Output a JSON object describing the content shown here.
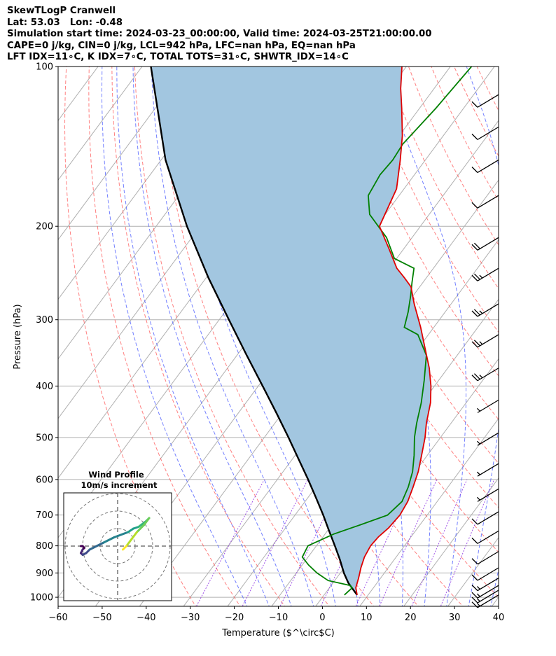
{
  "header": {
    "title": "SkewTLogP Cranwell",
    "latlon": "Lat: 53.03   Lon: -0.48",
    "times": "Simulation start time: 2024-03-23_00:00:00, Valid time: 2024-03-25T21:00:00.00",
    "params1": "CAPE=0 j/kg, CIN=0 j/kg, LCL=942 hPa, LFC=nan hPa, EQ=nan hPa",
    "params2": "LFT IDX=11∘C, K IDX=7∘C, TOTAL TOTS=31∘C, SHWTR_IDX=14∘C"
  },
  "colors": {
    "temperature": "#e00000",
    "dewpoint": "#008000",
    "parcel": "#000000",
    "shade": "#a2c6e0",
    "dry_adiabat": "#ff5555",
    "moist_adiabat": "#4455ff",
    "mixing_ratio": "#8a2be2",
    "isotherm": "#b0b0b0"
  },
  "chart_data": {
    "type": "line",
    "subtype": "skew-T log-P",
    "xlabel": "Temperature ($^\\circ$C)",
    "ylabel": "Pressure (hPa)",
    "xlim": [
      -60,
      40
    ],
    "ylim": [
      1040,
      100
    ],
    "y_scale": "log",
    "grid": true,
    "xticks": [
      -60,
      -50,
      -40,
      -30,
      -20,
      -10,
      0,
      10,
      20,
      30,
      40
    ],
    "xtick_labels": [
      "−60",
      "−50",
      "−40",
      "−30",
      "−20",
      "−10",
      "0",
      "10",
      "20",
      "30",
      "40"
    ],
    "yticks": [
      1000,
      900,
      800,
      700,
      600,
      500,
      400,
      300,
      200,
      100
    ],
    "ytick_labels": [
      "1000",
      "900",
      "800",
      "700",
      "600",
      "500",
      "400",
      "300",
      "200",
      "100"
    ],
    "series": [
      {
        "key": "temperature",
        "points": [
          [
            990,
            7.5
          ],
          [
            960,
            6.0
          ],
          [
            920,
            5.0
          ],
          [
            880,
            3.8
          ],
          [
            840,
            2.8
          ],
          [
            800,
            2.3
          ],
          [
            770,
            2.6
          ],
          [
            740,
            3.4
          ],
          [
            700,
            3.8
          ],
          [
            660,
            3.3
          ],
          [
            620,
            2.1
          ],
          [
            580,
            0.7
          ],
          [
            540,
            -1.3
          ],
          [
            500,
            -3.5
          ],
          [
            470,
            -5.6
          ],
          [
            430,
            -8.1
          ],
          [
            400,
            -10.8
          ],
          [
            370,
            -14.2
          ],
          [
            340,
            -18.4
          ],
          [
            310,
            -23.0
          ],
          [
            280,
            -28.4
          ],
          [
            260,
            -32.0
          ],
          [
            250,
            -35.0
          ],
          [
            240,
            -38.3
          ],
          [
            220,
            -43.5
          ],
          [
            200,
            -49.3
          ],
          [
            170,
            -51.7
          ],
          [
            150,
            -55.7
          ],
          [
            135,
            -59.3
          ],
          [
            120,
            -64.0
          ],
          [
            110,
            -67.6
          ],
          [
            100,
            -71.0
          ]
        ]
      },
      {
        "key": "dewpoint",
        "points": [
          [
            990,
            4.6
          ],
          [
            960,
            5.2
          ],
          [
            950,
            4.3
          ],
          [
            930,
            -1.5
          ],
          [
            900,
            -5.3
          ],
          [
            870,
            -8.5
          ],
          [
            840,
            -11.3
          ],
          [
            800,
            -11.9
          ],
          [
            760,
            -8.0
          ],
          [
            730,
            -3.5
          ],
          [
            700,
            1.0
          ],
          [
            660,
            2.0
          ],
          [
            620,
            1.0
          ],
          [
            580,
            -0.6
          ],
          [
            540,
            -3.0
          ],
          [
            500,
            -5.9
          ],
          [
            470,
            -7.8
          ],
          [
            430,
            -10.2
          ],
          [
            390,
            -13.3
          ],
          [
            350,
            -17.0
          ],
          [
            320,
            -22.4
          ],
          [
            310,
            -26.7
          ],
          [
            290,
            -28.4
          ],
          [
            270,
            -30.6
          ],
          [
            255,
            -32.5
          ],
          [
            240,
            -34.4
          ],
          [
            230,
            -40.5
          ],
          [
            210,
            -45.8
          ],
          [
            190,
            -53.5
          ],
          [
            175,
            -57.0
          ],
          [
            160,
            -57.8
          ],
          [
            150,
            -57.4
          ],
          [
            140,
            -57.8
          ],
          [
            120,
            -56.3
          ],
          [
            100,
            -55.2
          ]
        ]
      },
      {
        "key": "parcel",
        "points": [
          [
            990,
            7.5
          ],
          [
            960,
            5.1
          ],
          [
            940,
            3.5
          ],
          [
            900,
            0.8
          ],
          [
            850,
            -2.3
          ],
          [
            800,
            -5.8
          ],
          [
            750,
            -9.6
          ],
          [
            700,
            -13.6
          ],
          [
            650,
            -18.1
          ],
          [
            600,
            -23.0
          ],
          [
            550,
            -28.5
          ],
          [
            500,
            -34.5
          ],
          [
            450,
            -41.3
          ],
          [
            400,
            -49.0
          ],
          [
            350,
            -57.8
          ],
          [
            300,
            -67.8
          ],
          [
            250,
            -79.5
          ],
          [
            200,
            -93.0
          ],
          [
            150,
            -109.0
          ],
          [
            100,
            -128.0
          ]
        ]
      }
    ],
    "wind_barbs": [
      {
        "p": 990,
        "kt": 15
      },
      {
        "p": 970,
        "kt": 15
      },
      {
        "p": 950,
        "kt": 15
      },
      {
        "p": 920,
        "kt": 15
      },
      {
        "p": 880,
        "kt": 10
      },
      {
        "p": 820,
        "kt": 10
      },
      {
        "p": 750,
        "kt": 10
      },
      {
        "p": 690,
        "kt": 10
      },
      {
        "p": 625,
        "kt": 5
      },
      {
        "p": 560,
        "kt": 5
      },
      {
        "p": 490,
        "kt": 5
      },
      {
        "p": 425,
        "kt": 5
      },
      {
        "p": 370,
        "kt": 25
      },
      {
        "p": 320,
        "kt": 25
      },
      {
        "p": 280,
        "kt": 25
      },
      {
        "p": 240,
        "kt": 25
      },
      {
        "p": 210,
        "kt": 20
      },
      {
        "p": 175,
        "kt": 10
      },
      {
        "p": 150,
        "kt": 10
      },
      {
        "p": 130,
        "kt": 10
      },
      {
        "p": 113,
        "kt": 10
      }
    ],
    "hodograph": {
      "title": "Wind Profile",
      "subtitle": "10m/s increment",
      "rings_ms": [
        10,
        20,
        30
      ],
      "u_ms": [
        3,
        5,
        8,
        11,
        15,
        18,
        16,
        12,
        9,
        6,
        -2,
        -8,
        -12,
        -16,
        -18,
        -20,
        -21,
        -20,
        -19,
        -20,
        -21
      ],
      "v_ms": [
        -2,
        0,
        4,
        8,
        12,
        16,
        14,
        11,
        10,
        8,
        5,
        2,
        0,
        -2,
        -4,
        -5,
        -4,
        -2,
        -1,
        0,
        0
      ]
    },
    "inset_hint": "bottom-left"
  }
}
